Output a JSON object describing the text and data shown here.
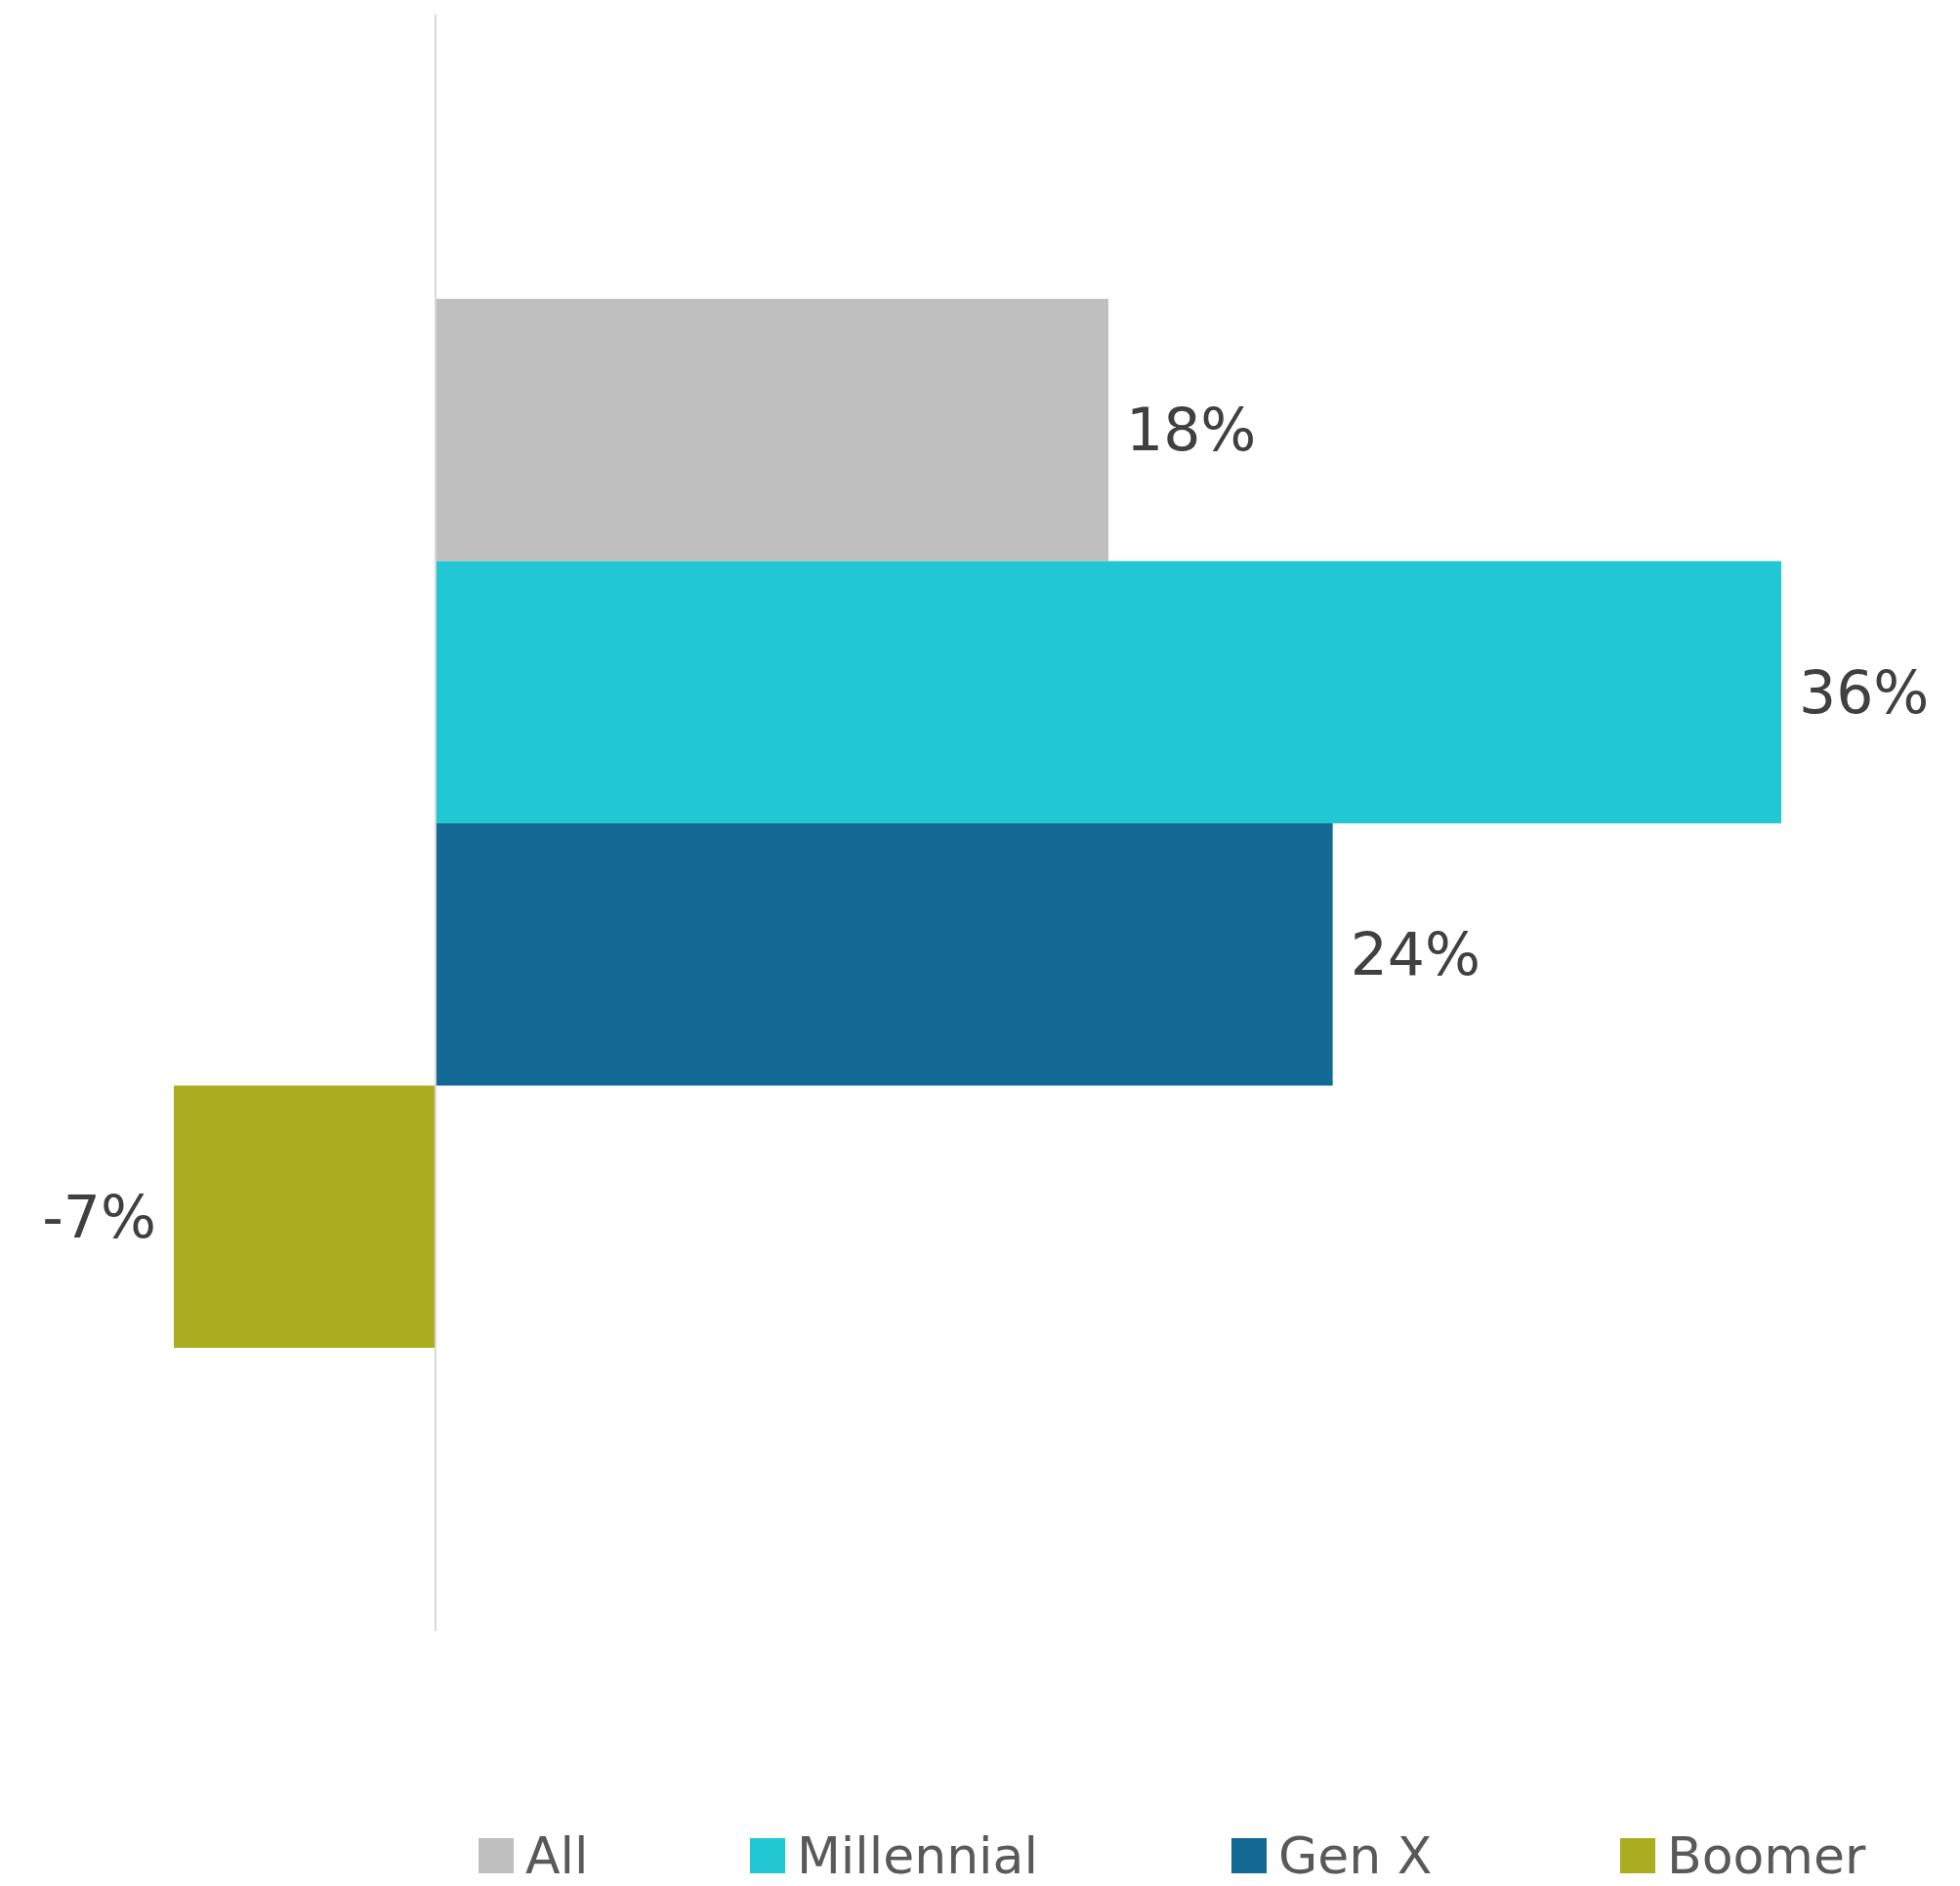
{
  "chart_data": {
    "type": "bar",
    "orientation": "horizontal",
    "categories": [
      null
    ],
    "series": [
      {
        "name": "All",
        "color": "#bfbfbf",
        "values": [
          18
        ],
        "value_labels": [
          "18%"
        ]
      },
      {
        "name": "Millennial",
        "color": "#21c7d3",
        "values": [
          36
        ],
        "value_labels": [
          "36%"
        ]
      },
      {
        "name": "Gen X",
        "color": "#126993",
        "values": [
          24
        ],
        "value_labels": [
          "24%"
        ]
      },
      {
        "name": "Boomer",
        "color": "#abad20",
        "values": [
          -7
        ],
        "value_labels": [
          "-7%"
        ]
      }
    ],
    "legend": "bottom"
  }
}
